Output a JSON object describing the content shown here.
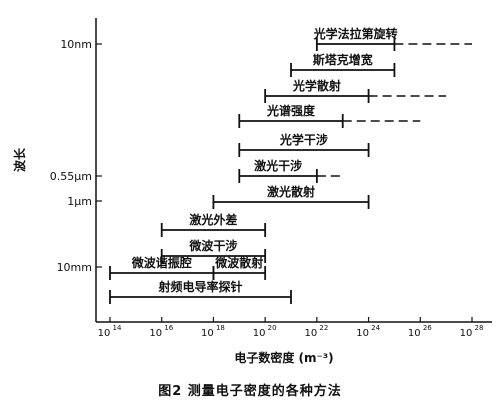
{
  "caption": "图2  测量电子密度的各种方法",
  "chart_data": {
    "type": "range",
    "xlabel": "电子数密度 (m⁻³)",
    "ylabel": "波长",
    "x_scale": "log",
    "xlim": [
      100000000000000.0,
      1e+28
    ],
    "x_ticks": [
      {
        "base": "10",
        "exp": "14",
        "value": 100000000000000.0
      },
      {
        "base": "10",
        "exp": "16",
        "value": 1e+16
      },
      {
        "base": "10",
        "exp": "18",
        "value": 1e+18
      },
      {
        "base": "10",
        "exp": "20",
        "value": 1e+20
      },
      {
        "base": "10",
        "exp": "22",
        "value": 1e+22
      },
      {
        "base": "10",
        "exp": "24",
        "value": 1e+24
      },
      {
        "base": "10",
        "exp": "26",
        "value": 1e+26
      },
      {
        "base": "10",
        "exp": "28",
        "value": 1e+28
      }
    ],
    "y_ticks": [
      "10nm",
      "0.55μm",
      "1μm",
      "10mm"
    ],
    "methods": [
      {
        "name": "光学法拉第旋转",
        "start": 1e+22,
        "end": 1e+25,
        "dashed_end": 1e+28
      },
      {
        "name": "斯塔克增宽",
        "start": 1e+21,
        "end": 1e+25,
        "dashed_end": null
      },
      {
        "name": "光学散射",
        "start": 1e+20,
        "end": 1e+24,
        "dashed_end": 1e+27
      },
      {
        "name": "光谱强度",
        "start": 1e+19,
        "end": 1e+23,
        "dashed_end": 1e+26
      },
      {
        "name": "光学干涉",
        "start": 1e+19,
        "end": 1e+24,
        "dashed_end": null
      },
      {
        "name": "激光干涉",
        "start": 1e+19,
        "end": 1e+22,
        "dashed_end": 1e+23
      },
      {
        "name": "激光散射",
        "start": 1e+18,
        "end": 1e+24,
        "dashed_end": null
      },
      {
        "name": "激光外差",
        "start": 1e+16,
        "end": 1e+20,
        "dashed_end": null
      },
      {
        "name": "微波干涉",
        "start": 1e+16,
        "end": 1e+20,
        "dashed_end": null
      },
      {
        "name": "微波谐振腔",
        "start": 100000000000000.0,
        "end": 1e+18,
        "dashed_end": null
      },
      {
        "name": "微波散射",
        "start": 1e+18,
        "end": 1e+20,
        "dashed_end": null
      },
      {
        "name": "射频电导率探针",
        "start": 100000000000000.0,
        "end": 1e+21,
        "dashed_end": null
      }
    ]
  }
}
